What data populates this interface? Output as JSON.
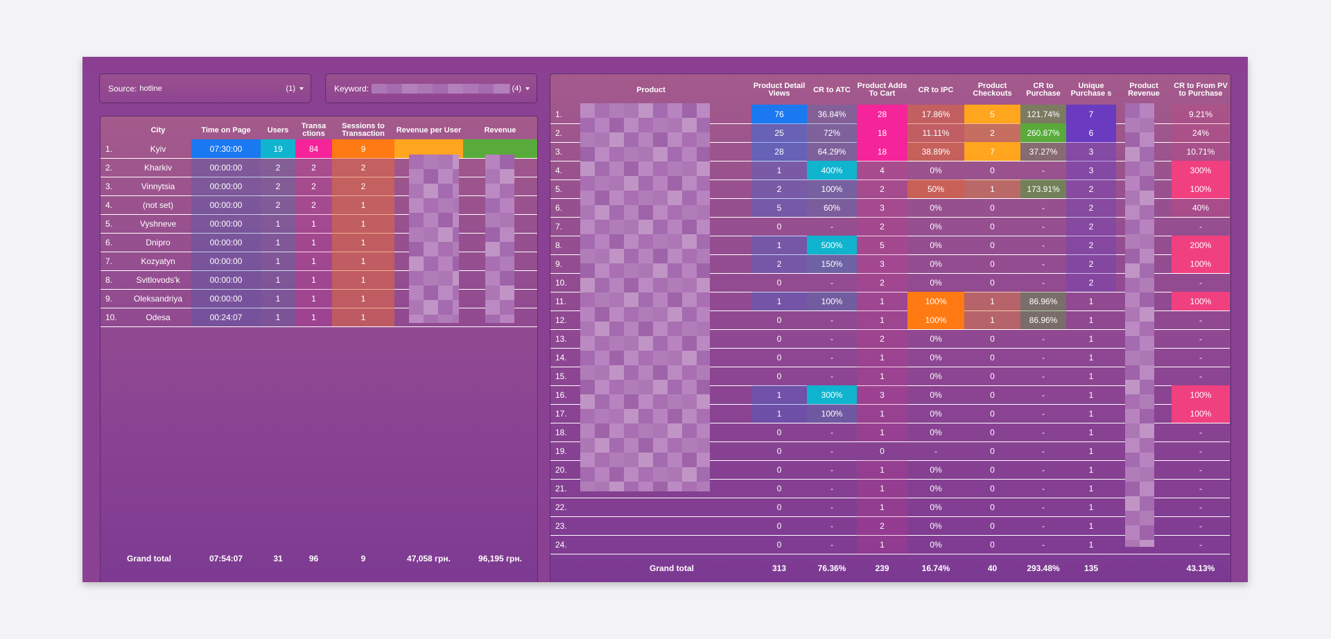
{
  "filters": {
    "source": {
      "label": "Source:",
      "value": "hotline",
      "count": "(1)"
    },
    "keyword": {
      "label": "Keyword:",
      "count": "(4)"
    }
  },
  "city_table": {
    "headers": [
      "City",
      "Time on Page",
      "Users",
      "Transa ctions",
      "Sessions to Transaction",
      "Revenue per User",
      "Revenue"
    ],
    "rows": [
      {
        "idx": "1.",
        "city": "Kyiv",
        "time": "07:30:00",
        "users": "19",
        "transactions": "84",
        "sessions": "9"
      },
      {
        "idx": "2.",
        "city": "Kharkiv",
        "time": "00:00:00",
        "users": "2",
        "transactions": "2",
        "sessions": "2"
      },
      {
        "idx": "3.",
        "city": "Vinnytsia",
        "time": "00:00:00",
        "users": "2",
        "transactions": "2",
        "sessions": "2"
      },
      {
        "idx": "4.",
        "city": "(not set)",
        "time": "00:00:00",
        "users": "2",
        "transactions": "2",
        "sessions": "1"
      },
      {
        "idx": "5.",
        "city": "Vyshneve",
        "time": "00:00:00",
        "users": "1",
        "transactions": "1",
        "sessions": "1"
      },
      {
        "idx": "6.",
        "city": "Dnipro",
        "time": "00:00:00",
        "users": "1",
        "transactions": "1",
        "sessions": "1"
      },
      {
        "idx": "7.",
        "city": "Kozyatyn",
        "time": "00:00:00",
        "users": "1",
        "transactions": "1",
        "sessions": "1"
      },
      {
        "idx": "8.",
        "city": "Svitlovods'k",
        "time": "00:00:00",
        "users": "1",
        "transactions": "1",
        "sessions": "1"
      },
      {
        "idx": "9.",
        "city": "Oleksandriya",
        "time": "00:00:00",
        "users": "1",
        "transactions": "1",
        "sessions": "1"
      },
      {
        "idx": "10.",
        "city": "Odesa",
        "time": "00:24:07",
        "users": "1",
        "transactions": "1",
        "sessions": "1"
      }
    ],
    "total": {
      "label": "Grand total",
      "time": "07:54:07",
      "users": "31",
      "transactions": "96",
      "sessions": "9",
      "revenue_per_user": "47,058 грн.",
      "revenue": "96,195 грн."
    }
  },
  "product_table": {
    "headers": [
      "Product",
      "Product Detail Views",
      "CR to ATC",
      "Product Adds To Cart",
      "CR to IPC",
      "Product Checkouts",
      "CR to Purchase",
      "Unique Purchase s",
      "Product Revenue",
      "CR to From PV to Purchase"
    ],
    "rows": [
      {
        "idx": "1.",
        "pdv": "76",
        "atc_cr": "36.84%",
        "adds": "28",
        "ipc": "17.86%",
        "checkouts": "5",
        "cr_purchase": "121.74%",
        "unique": "7",
        "pv_purchase": "9.21%"
      },
      {
        "idx": "2.",
        "pdv": "25",
        "atc_cr": "72%",
        "adds": "18",
        "ipc": "11.11%",
        "checkouts": "2",
        "cr_purchase": "260.87%",
        "unique": "6",
        "pv_purchase": "24%"
      },
      {
        "idx": "3.",
        "pdv": "28",
        "atc_cr": "64.29%",
        "adds": "18",
        "ipc": "38.89%",
        "checkouts": "7",
        "cr_purchase": "37.27%",
        "unique": "3",
        "pv_purchase": "10.71%"
      },
      {
        "idx": "4.",
        "pdv": "1",
        "atc_cr": "400%",
        "adds": "4",
        "ipc": "0%",
        "checkouts": "0",
        "cr_purchase": "-",
        "unique": "3",
        "pv_purchase": "300%"
      },
      {
        "idx": "5.",
        "pdv": "2",
        "atc_cr": "100%",
        "adds": "2",
        "ipc": "50%",
        "checkouts": "1",
        "cr_purchase": "173.91%",
        "unique": "2",
        "pv_purchase": "100%"
      },
      {
        "idx": "6.",
        "pdv": "5",
        "atc_cr": "60%",
        "adds": "3",
        "ipc": "0%",
        "checkouts": "0",
        "cr_purchase": "-",
        "unique": "2",
        "pv_purchase": "40%"
      },
      {
        "idx": "7.",
        "pdv": "0",
        "atc_cr": "-",
        "adds": "2",
        "ipc": "0%",
        "checkouts": "0",
        "cr_purchase": "-",
        "unique": "2",
        "pv_purchase": "-"
      },
      {
        "idx": "8.",
        "pdv": "1",
        "atc_cr": "500%",
        "adds": "5",
        "ipc": "0%",
        "checkouts": "0",
        "cr_purchase": "-",
        "unique": "2",
        "pv_purchase": "200%"
      },
      {
        "idx": "9.",
        "pdv": "2",
        "atc_cr": "150%",
        "adds": "3",
        "ipc": "0%",
        "checkouts": "0",
        "cr_purchase": "-",
        "unique": "2",
        "pv_purchase": "100%"
      },
      {
        "idx": "10.",
        "pdv": "0",
        "atc_cr": "-",
        "adds": "2",
        "ipc": "0%",
        "checkouts": "0",
        "cr_purchase": "-",
        "unique": "2",
        "pv_purchase": "-"
      },
      {
        "idx": "11.",
        "pdv": "1",
        "atc_cr": "100%",
        "adds": "1",
        "ipc": "100%",
        "checkouts": "1",
        "cr_purchase": "86.96%",
        "unique": "1",
        "pv_purchase": "100%"
      },
      {
        "idx": "12.",
        "pdv": "0",
        "atc_cr": "-",
        "adds": "1",
        "ipc": "100%",
        "checkouts": "1",
        "cr_purchase": "86.96%",
        "unique": "1",
        "pv_purchase": "-"
      },
      {
        "idx": "13.",
        "pdv": "0",
        "atc_cr": "-",
        "adds": "2",
        "ipc": "0%",
        "checkouts": "0",
        "cr_purchase": "-",
        "unique": "1",
        "pv_purchase": "-"
      },
      {
        "idx": "14.",
        "pdv": "0",
        "atc_cr": "-",
        "adds": "1",
        "ipc": "0%",
        "checkouts": "0",
        "cr_purchase": "-",
        "unique": "1",
        "pv_purchase": "-"
      },
      {
        "idx": "15.",
        "pdv": "0",
        "atc_cr": "-",
        "adds": "1",
        "ipc": "0%",
        "checkouts": "0",
        "cr_purchase": "-",
        "unique": "1",
        "pv_purchase": "-"
      },
      {
        "idx": "16.",
        "pdv": "1",
        "atc_cr": "300%",
        "adds": "3",
        "ipc": "0%",
        "checkouts": "0",
        "cr_purchase": "-",
        "unique": "1",
        "pv_purchase": "100%"
      },
      {
        "idx": "17.",
        "pdv": "1",
        "atc_cr": "100%",
        "adds": "1",
        "ipc": "0%",
        "checkouts": "0",
        "cr_purchase": "-",
        "unique": "1",
        "pv_purchase": "100%"
      },
      {
        "idx": "18.",
        "pdv": "0",
        "atc_cr": "-",
        "adds": "1",
        "ipc": "0%",
        "checkouts": "0",
        "cr_purchase": "-",
        "unique": "1",
        "pv_purchase": "-"
      },
      {
        "idx": "19.",
        "pdv": "0",
        "atc_cr": "-",
        "adds": "0",
        "ipc": "-",
        "checkouts": "0",
        "cr_purchase": "-",
        "unique": "1",
        "pv_purchase": "-"
      },
      {
        "idx": "20.",
        "pdv": "0",
        "atc_cr": "-",
        "adds": "1",
        "ipc": "0%",
        "checkouts": "0",
        "cr_purchase": "-",
        "unique": "1",
        "pv_purchase": "-"
      },
      {
        "idx": "21.",
        "pdv": "0",
        "atc_cr": "-",
        "adds": "1",
        "ipc": "0%",
        "checkouts": "0",
        "cr_purchase": "-",
        "unique": "1",
        "pv_purchase": "-"
      },
      {
        "idx": "22.",
        "pdv": "0",
        "atc_cr": "-",
        "adds": "1",
        "ipc": "0%",
        "checkouts": "0",
        "cr_purchase": "-",
        "unique": "1",
        "pv_purchase": "-"
      },
      {
        "idx": "23.",
        "pdv": "0",
        "atc_cr": "-",
        "adds": "2",
        "ipc": "0%",
        "checkouts": "0",
        "cr_purchase": "-",
        "unique": "1",
        "pv_purchase": "-"
      },
      {
        "idx": "24.",
        "pdv": "0",
        "atc_cr": "-",
        "adds": "1",
        "ipc": "0%",
        "checkouts": "0",
        "cr_purchase": "-",
        "unique": "1",
        "pv_purchase": "-"
      }
    ],
    "total": {
      "label": "Grand total",
      "pdv": "313",
      "atc_cr": "76.36%",
      "adds": "239",
      "ipc": "16.74%",
      "checkouts": "40",
      "cr_purchase": "293.48%",
      "unique": "135",
      "pv_purchase": "43.13%"
    }
  },
  "colors": {
    "blue": "#1a78f0",
    "cyan": "#10b4cf",
    "pink": "#f5249a",
    "orange": "#ff7a12",
    "amber": "#ffa51e",
    "green": "#58ab3a",
    "violet": "#6a3bc0",
    "rose": "#f0407f"
  }
}
